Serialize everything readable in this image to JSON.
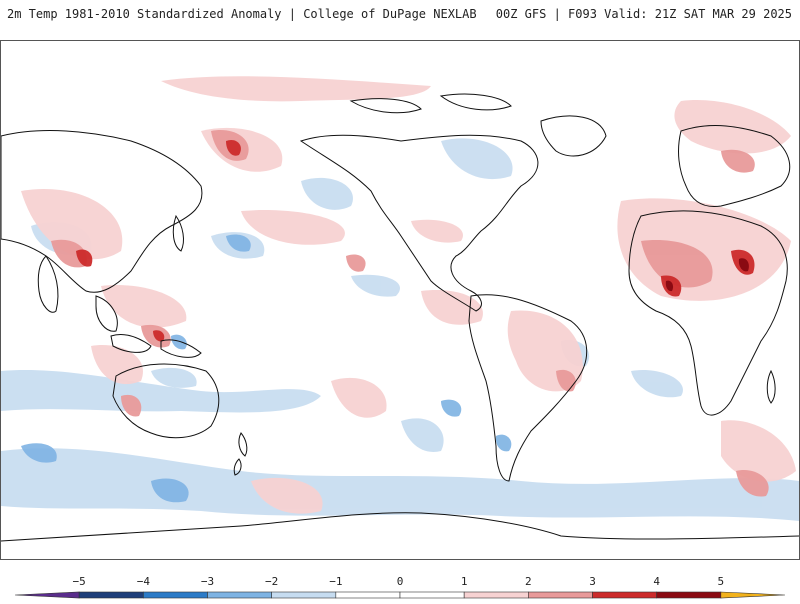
{
  "header": {
    "left_title": "2m Temp 1981-2010 Standardized Anomaly | College of DuPage NEXLAB",
    "right_title": "00Z GFS | F093 Valid: 21Z SAT MAR 29 2025"
  },
  "map": {
    "projection": "global equirectangular, Pacific-centered",
    "coastline_color": "#111111",
    "background_color": "#ffffff"
  },
  "colorbar": {
    "ticks": [
      "-5",
      "-4",
      "-3",
      "-2",
      "-1",
      "0",
      "1",
      "2",
      "3",
      "4",
      "5"
    ],
    "segments": [
      {
        "value": "< -5",
        "color": "#5a2d8c"
      },
      {
        "value": "-5 to -4",
        "color": "#1f3f7a"
      },
      {
        "value": "-4 to -3",
        "color": "#2c7bc7"
      },
      {
        "value": "-3 to -2",
        "color": "#7eb3e3"
      },
      {
        "value": "-2 to -1",
        "color": "#c6dcf0"
      },
      {
        "value": "-1 to 0",
        "color": "#ffffff"
      },
      {
        "value": "0 to 1",
        "color": "#ffffff"
      },
      {
        "value": "1 to 2",
        "color": "#f7d2d2"
      },
      {
        "value": "2 to 3",
        "color": "#e89a9a"
      },
      {
        "value": "3 to 4",
        "color": "#cc2b2b"
      },
      {
        "value": "4 to 5",
        "color": "#8a0a12"
      },
      {
        "value": "> 5",
        "color": "#f2b21c"
      }
    ]
  }
}
